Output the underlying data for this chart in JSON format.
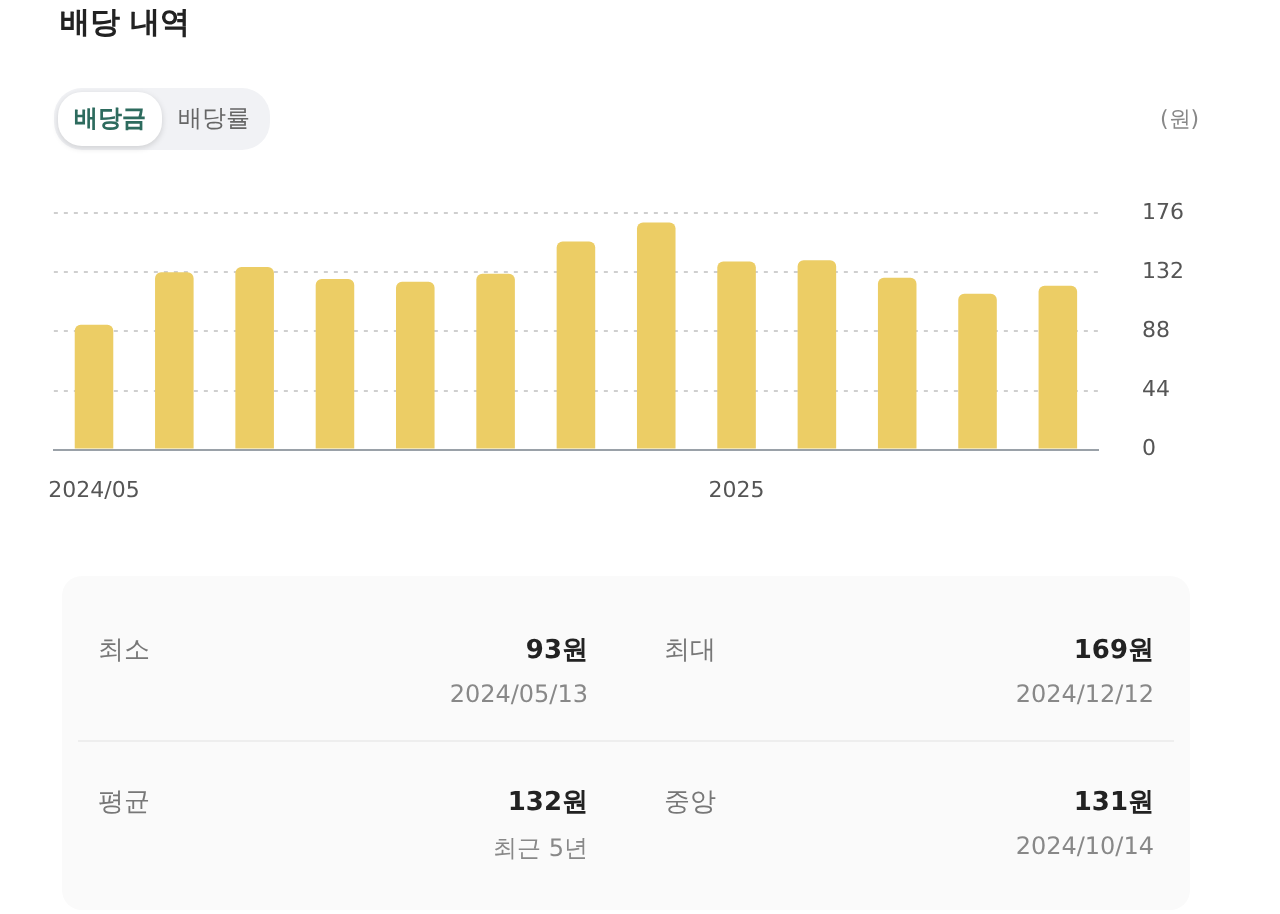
{
  "chart_data": {
    "type": "bar",
    "title": "배당 내역",
    "ylabel": "(원)",
    "categories": [
      "2024/05",
      null,
      null,
      null,
      null,
      null,
      null,
      null,
      "2025",
      null,
      null,
      null,
      null
    ],
    "values": [
      93,
      132,
      136,
      127,
      125,
      131,
      155,
      169,
      140,
      141,
      128,
      116,
      122
    ],
    "color": "#eccd65",
    "ylim": [
      0,
      176
    ],
    "yticks": [
      0,
      44,
      88,
      132,
      176
    ],
    "grid": "y",
    "legend": false,
    "annotations": [
      "배당금",
      "배당률",
      "최소",
      "93원",
      "2024/05/13",
      "최대",
      "169원",
      "2024/12/12",
      "평균",
      "132원",
      "최근 5년",
      "중앙",
      "131원",
      "2024/10/14"
    ]
  }
}
